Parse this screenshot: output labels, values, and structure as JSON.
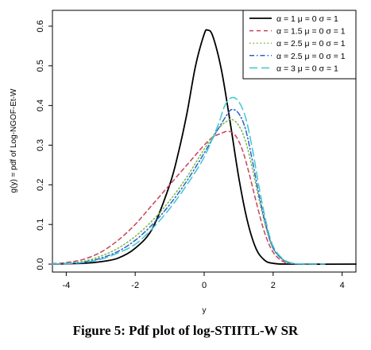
{
  "caption": "Figure 5: Pdf plot of log-STIITL-W SR",
  "chart_data": {
    "type": "line",
    "title": "",
    "xlabel": "y",
    "ylabel": "g(y) = pdf of Log-NGOF-Et-W",
    "xlim": [
      -4.4,
      4.4
    ],
    "ylim": [
      -0.02,
      0.64
    ],
    "xticks": [
      -4,
      -2,
      0,
      2,
      4
    ],
    "yticks": [
      0.0,
      0.1,
      0.2,
      0.3,
      0.4,
      0.5,
      0.6
    ],
    "xtick_labels": [
      "-4",
      "-2",
      "0",
      "2",
      "4"
    ],
    "ytick_labels": [
      "0.0",
      "0.1",
      "0.2",
      "0.3",
      "0.4",
      "0.5",
      "0.6"
    ],
    "grid": false,
    "legend_position": "top-right",
    "series": [
      {
        "name": "α = 1  μ = 0  σ = 1",
        "color": "#000000",
        "dash": "solid",
        "x": [
          -4.4,
          -3.5,
          -3.0,
          -2.5,
          -2.0,
          -1.5,
          -1.0,
          -0.75,
          -0.5,
          -0.25,
          0.0,
          0.1,
          0.25,
          0.5,
          0.75,
          1.0,
          1.25,
          1.5,
          1.75,
          2.0,
          2.5,
          4.4
        ],
        "y": [
          0.0,
          0.002,
          0.006,
          0.015,
          0.04,
          0.09,
          0.2,
          0.28,
          0.38,
          0.5,
          0.58,
          0.59,
          0.575,
          0.49,
          0.36,
          0.22,
          0.11,
          0.04,
          0.01,
          0.002,
          0.0,
          0.0
        ]
      },
      {
        "name": "α = 1.5  μ = 0  σ = 1",
        "color": "#c8435a",
        "dash": "dashed",
        "x": [
          -4.4,
          -4.0,
          -3.5,
          -3.0,
          -2.5,
          -2.0,
          -1.5,
          -1.0,
          -0.5,
          0.0,
          0.25,
          0.5,
          0.7,
          0.9,
          1.1,
          1.3,
          1.5,
          1.75,
          2.0,
          2.3,
          2.6,
          3.0
        ],
        "y": [
          0.001,
          0.004,
          0.012,
          0.03,
          0.06,
          0.1,
          0.15,
          0.2,
          0.25,
          0.3,
          0.32,
          0.33,
          0.335,
          0.325,
          0.29,
          0.23,
          0.16,
          0.08,
          0.03,
          0.006,
          0.001,
          0.0
        ]
      },
      {
        "name": "α = 2.5  μ = 0  σ = 1",
        "color": "#73b845",
        "dash": "dotted",
        "x": [
          -4.4,
          -4.0,
          -3.5,
          -3.0,
          -2.5,
          -2.0,
          -1.5,
          -1.0,
          -0.5,
          0.0,
          0.4,
          0.65,
          0.8,
          1.0,
          1.2,
          1.4,
          1.6,
          1.8,
          2.0,
          2.3,
          2.6,
          3.0
        ],
        "y": [
          0.0,
          0.002,
          0.007,
          0.02,
          0.04,
          0.07,
          0.11,
          0.16,
          0.22,
          0.29,
          0.34,
          0.36,
          0.365,
          0.35,
          0.31,
          0.24,
          0.16,
          0.09,
          0.04,
          0.01,
          0.001,
          0.0
        ]
      },
      {
        "name": "α = 2.5  μ = 0  σ = 1",
        "color": "#2e62c6",
        "dash": "dashdot",
        "x": [
          -4.4,
          -4.0,
          -3.5,
          -3.0,
          -2.5,
          -2.0,
          -1.5,
          -1.0,
          -0.5,
          0.0,
          0.4,
          0.65,
          0.8,
          1.0,
          1.2,
          1.4,
          1.6,
          1.8,
          2.0,
          2.3,
          2.6,
          3.0
        ],
        "y": [
          0.0,
          0.0015,
          0.005,
          0.015,
          0.032,
          0.06,
          0.1,
          0.15,
          0.21,
          0.28,
          0.34,
          0.375,
          0.39,
          0.38,
          0.34,
          0.26,
          0.17,
          0.095,
          0.04,
          0.01,
          0.001,
          0.0
        ]
      },
      {
        "name": "α = 3  μ = 0  σ = 1",
        "color": "#3fc6d2",
        "dash": "longdash",
        "x": [
          -4.4,
          -4.0,
          -3.5,
          -3.0,
          -2.5,
          -2.0,
          -1.5,
          -1.0,
          -0.5,
          0.0,
          0.4,
          0.6,
          0.8,
          1.0,
          1.2,
          1.4,
          1.6,
          1.8,
          2.0,
          2.3,
          2.6,
          3.0,
          3.5
        ],
        "y": [
          0.0,
          0.001,
          0.004,
          0.012,
          0.028,
          0.05,
          0.09,
          0.14,
          0.2,
          0.27,
          0.35,
          0.4,
          0.42,
          0.41,
          0.37,
          0.29,
          0.19,
          0.105,
          0.045,
          0.012,
          0.002,
          0.0,
          0.0
        ]
      }
    ]
  }
}
